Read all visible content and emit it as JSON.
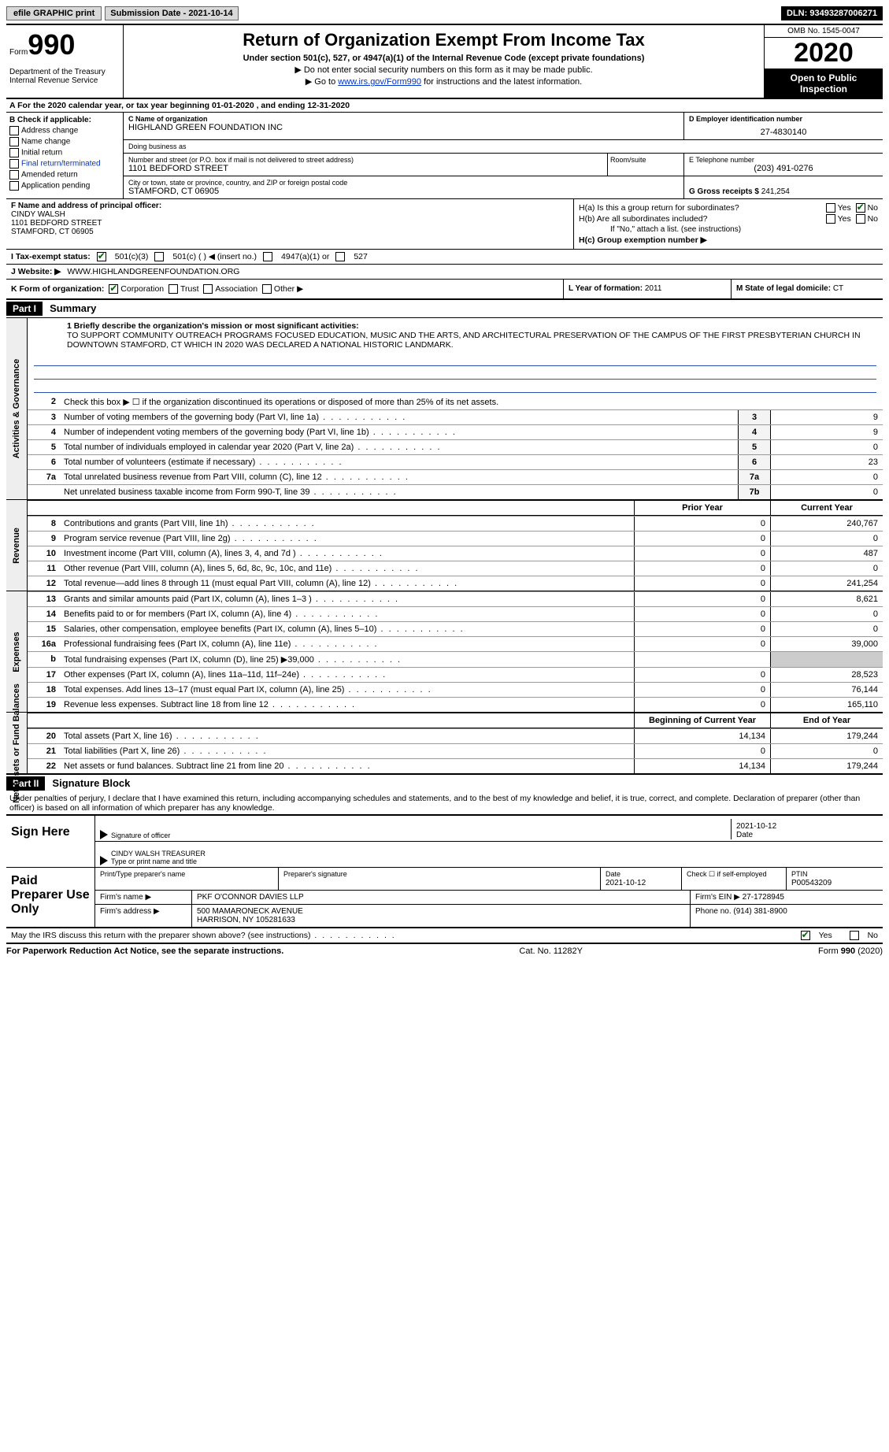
{
  "topbar": {
    "efile": "efile GRAPHIC print",
    "submission_label": "Submission Date - 2021-10-14",
    "dln": "DLN: 93493287006271"
  },
  "header": {
    "form_word": "Form",
    "form_num": "990",
    "title": "Return of Organization Exempt From Income Tax",
    "subtitle1": "Under section 501(c), 527, or 4947(a)(1) of the Internal Revenue Code (except private foundations)",
    "subtitle2": "▶ Do not enter social security numbers on this form as it may be made public.",
    "subtitle3_pre": "▶ Go to ",
    "subtitle3_link": "www.irs.gov/Form990",
    "subtitle3_post": " for instructions and the latest information.",
    "dept": "Department of the Treasury\nInternal Revenue Service",
    "omb": "OMB No. 1545-0047",
    "year": "2020",
    "inspection": "Open to Public Inspection"
  },
  "row_a": "A For the 2020 calendar year, or tax year beginning 01-01-2020     , and ending 12-31-2020",
  "box_b": {
    "title": "B Check if applicable:",
    "items": [
      "Address change",
      "Name change",
      "Initial return",
      "Final return/terminated",
      "Amended return",
      "Application pending"
    ]
  },
  "box_c": {
    "name_label": "C Name of organization",
    "name": "HIGHLAND GREEN FOUNDATION INC",
    "dba_label": "Doing business as",
    "dba": "",
    "addr_label": "Number and street (or P.O. box if mail is not delivered to street address)",
    "addr": "1101 BEDFORD STREET",
    "room_label": "Room/suite",
    "city_label": "City or town, state or province, country, and ZIP or foreign postal code",
    "city": "STAMFORD, CT  06905"
  },
  "box_d": {
    "label": "D Employer identification number",
    "val": "27-4830140"
  },
  "box_e": {
    "label": "E Telephone number",
    "val": "(203) 491-0276"
  },
  "box_g": {
    "label": "G Gross receipts $",
    "val": "241,254"
  },
  "box_f": {
    "label": "F Name and address of principal officer:",
    "name": "CINDY WALSH",
    "addr1": "1101 BEDFORD STREET",
    "addr2": "STAMFORD, CT  06905"
  },
  "box_h": {
    "a_label": "H(a)  Is this a group return for subordinates?",
    "b_label": "H(b)  Are all subordinates included?",
    "b_note": "If \"No,\" attach a list. (see instructions)",
    "c_label": "H(c)  Group exemption number ▶",
    "yes": "Yes",
    "no": "No"
  },
  "box_i": {
    "label": "I  Tax-exempt status:",
    "opts": [
      "501(c)(3)",
      "501(c) (  ) ◀ (insert no.)",
      "4947(a)(1) or",
      "527"
    ]
  },
  "box_j": {
    "label": "J  Website: ▶",
    "val": "WWW.HIGHLANDGREENFOUNDATION.ORG"
  },
  "box_k": {
    "label": "K Form of organization:",
    "opts": [
      "Corporation",
      "Trust",
      "Association",
      "Other ▶"
    ]
  },
  "box_l": {
    "label": "L Year of formation:",
    "val": "2011"
  },
  "box_m": {
    "label": "M State of legal domicile:",
    "val": "CT"
  },
  "part1": {
    "tag": "Part I",
    "title": "Summary",
    "l1_label": "1  Briefly describe the organization's mission or most significant activities:",
    "l1_text": "TO SUPPORT COMMUNITY OUTREACH PROGRAMS FOCUSED EDUCATION, MUSIC AND THE ARTS, AND ARCHITECTURAL PRESERVATION OF THE CAMPUS OF THE FIRST PRESBYTERIAN CHURCH IN DOWNTOWN STAMFORD, CT WHICH IN 2020 WAS DECLARED A NATIONAL HISTORIC LANDMARK.",
    "l2": "Check this box ▶ ☐ if the organization discontinued its operations or disposed of more than 25% of its net assets.",
    "gov_lines": [
      {
        "n": "3",
        "t": "Number of voting members of the governing body (Part VI, line 1a)",
        "box": "3",
        "v": "9"
      },
      {
        "n": "4",
        "t": "Number of independent voting members of the governing body (Part VI, line 1b)",
        "box": "4",
        "v": "9"
      },
      {
        "n": "5",
        "t": "Total number of individuals employed in calendar year 2020 (Part V, line 2a)",
        "box": "5",
        "v": "0"
      },
      {
        "n": "6",
        "t": "Total number of volunteers (estimate if necessary)",
        "box": "6",
        "v": "23"
      },
      {
        "n": "7a",
        "t": "Total unrelated business revenue from Part VIII, column (C), line 12",
        "box": "7a",
        "v": "0"
      },
      {
        "n": "",
        "t": "Net unrelated business taxable income from Form 990-T, line 39",
        "box": "7b",
        "v": "0"
      }
    ],
    "col_prior": "Prior Year",
    "col_curr": "Current Year",
    "rev_lines": [
      {
        "n": "8",
        "t": "Contributions and grants (Part VIII, line 1h)",
        "p": "0",
        "c": "240,767"
      },
      {
        "n": "9",
        "t": "Program service revenue (Part VIII, line 2g)",
        "p": "0",
        "c": "0"
      },
      {
        "n": "10",
        "t": "Investment income (Part VIII, column (A), lines 3, 4, and 7d )",
        "p": "0",
        "c": "487"
      },
      {
        "n": "11",
        "t": "Other revenue (Part VIII, column (A), lines 5, 6d, 8c, 9c, 10c, and 11e)",
        "p": "0",
        "c": "0"
      },
      {
        "n": "12",
        "t": "Total revenue—add lines 8 through 11 (must equal Part VIII, column (A), line 12)",
        "p": "0",
        "c": "241,254"
      }
    ],
    "exp_lines": [
      {
        "n": "13",
        "t": "Grants and similar amounts paid (Part IX, column (A), lines 1–3 )",
        "p": "0",
        "c": "8,621"
      },
      {
        "n": "14",
        "t": "Benefits paid to or for members (Part IX, column (A), line 4)",
        "p": "0",
        "c": "0"
      },
      {
        "n": "15",
        "t": "Salaries, other compensation, employee benefits (Part IX, column (A), lines 5–10)",
        "p": "0",
        "c": "0"
      },
      {
        "n": "16a",
        "t": "Professional fundraising fees (Part IX, column (A), line 11e)",
        "p": "0",
        "c": "39,000"
      },
      {
        "n": "b",
        "t": "Total fundraising expenses (Part IX, column (D), line 25) ▶39,000",
        "p": "",
        "c": "",
        "grey": true
      },
      {
        "n": "17",
        "t": "Other expenses (Part IX, column (A), lines 11a–11d, 11f–24e)",
        "p": "0",
        "c": "28,523"
      },
      {
        "n": "18",
        "t": "Total expenses. Add lines 13–17 (must equal Part IX, column (A), line 25)",
        "p": "0",
        "c": "76,144"
      },
      {
        "n": "19",
        "t": "Revenue less expenses. Subtract line 18 from line 12",
        "p": "0",
        "c": "165,110"
      }
    ],
    "col_begin": "Beginning of Current Year",
    "col_end": "End of Year",
    "net_lines": [
      {
        "n": "20",
        "t": "Total assets (Part X, line 16)",
        "p": "14,134",
        "c": "179,244"
      },
      {
        "n": "21",
        "t": "Total liabilities (Part X, line 26)",
        "p": "0",
        "c": "0"
      },
      {
        "n": "22",
        "t": "Net assets or fund balances. Subtract line 21 from line 20",
        "p": "14,134",
        "c": "179,244"
      }
    ]
  },
  "part2": {
    "tag": "Part II",
    "title": "Signature Block",
    "perjury": "Under penalties of perjury, I declare that I have examined this return, including accompanying schedules and statements, and to the best of my knowledge and belief, it is true, correct, and complete. Declaration of preparer (other than officer) is based on all information of which preparer has any knowledge."
  },
  "sign": {
    "label": "Sign Here",
    "sig_label": "Signature of officer",
    "date_val": "2021-10-12",
    "date_label": "Date",
    "name": "CINDY WALSH TREASURER",
    "name_label": "Type or print name and title"
  },
  "paid": {
    "label": "Paid Preparer Use Only",
    "r1": {
      "c1_label": "Print/Type preparer's name",
      "c2_label": "Preparer's signature",
      "c3_label": "Date",
      "c3_val": "2021-10-12",
      "c4_label": "Check ☐ if self-employed",
      "c5_label": "PTIN",
      "c5_val": "P00543209"
    },
    "r2": {
      "l": "Firm's name    ▶",
      "v": "PKF O'CONNOR DAVIES LLP",
      "ein_l": "Firm's EIN ▶",
      "ein_v": "27-1728945"
    },
    "r3": {
      "l": "Firm's address ▶",
      "v1": "500 MAMARONECK AVENUE",
      "v2": "HARRISON, NY  105281633",
      "ph_l": "Phone no.",
      "ph_v": "(914) 381-8900"
    }
  },
  "discuss": {
    "text": "May the IRS discuss this return with the preparer shown above? (see instructions)",
    "yes": "Yes",
    "no": "No"
  },
  "footer": {
    "left": "For Paperwork Reduction Act Notice, see the separate instructions.",
    "mid": "Cat. No. 11282Y",
    "right": "Form 990 (2020)"
  },
  "vtabs": {
    "gov": "Activities & Governance",
    "rev": "Revenue",
    "exp": "Expenses",
    "net": "Net Assets or Fund Balances"
  }
}
